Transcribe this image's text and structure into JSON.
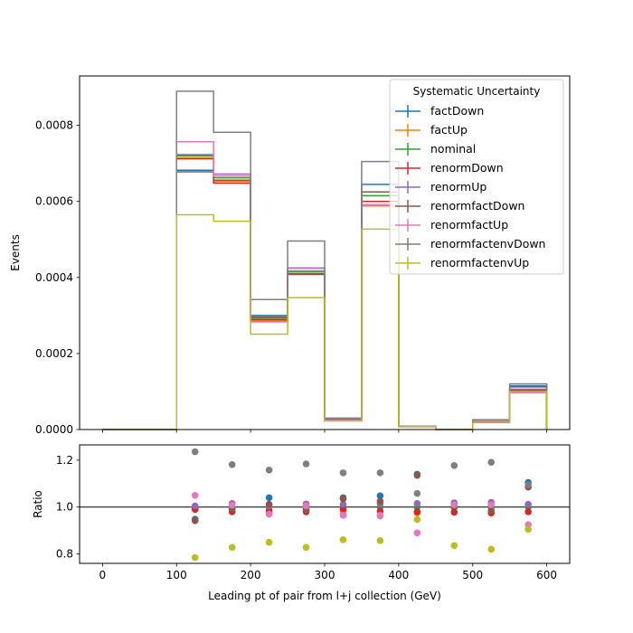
{
  "chart_data": [
    {
      "type": "line",
      "subtype": "step-histogram",
      "ylabel": "Events",
      "xlim": [
        -31,
        631
      ],
      "ylim": [
        0,
        0.00093
      ],
      "yticks": [
        0.0,
        0.0002,
        0.0004,
        0.0006,
        0.0008
      ],
      "ytick_labels": [
        "0.0000",
        "0.0002",
        "0.0004",
        "0.0006",
        "0.0008"
      ],
      "bin_edges": [
        0,
        50,
        100,
        150,
        200,
        250,
        300,
        350,
        400,
        450,
        500,
        550,
        600
      ],
      "legend": {
        "title": "Systematic Uncertainty",
        "placement": "top-right"
      },
      "series": [
        {
          "name": "factDown",
          "color": "#1f77b4",
          "values": [
            0,
            0,
            0.000682,
            0.000655,
            0.0003,
            0.000418,
            2.7e-05,
            0.000645,
            8.5e-06,
            0,
            2.2e-05,
            0.000115
          ]
        },
        {
          "name": "factUp",
          "color": "#ff7f0e",
          "values": [
            0,
            0,
            0.000715,
            0.000653,
            0.000286,
            0.00041,
            2.5e-05,
            0.000588,
            7.8e-06,
            0,
            2.1e-05,
            0.000105
          ]
        },
        {
          "name": "nominal",
          "color": "#2ca02c",
          "values": [
            0,
            0,
            0.00072,
            0.000662,
            0.000293,
            0.000415,
            2.6e-05,
            0.000615,
            8e-06,
            0,
            2.2e-05,
            0.000104
          ]
        },
        {
          "name": "renormDown",
          "color": "#d62728",
          "values": [
            0,
            0,
            0.000712,
            0.000648,
            0.000289,
            0.000408,
            2.6e-05,
            0.0006,
            7.9e-06,
            0,
            2.15e-05,
            0.000102
          ]
        },
        {
          "name": "renormUp",
          "color": "#9467bd",
          "values": [
            0,
            0,
            0.000723,
            0.000672,
            0.000295,
            0.000425,
            2.7e-05,
            0.000625,
            8.2e-06,
            0,
            2.23e-05,
            0.000106
          ]
        },
        {
          "name": "renormfactDown",
          "color": "#8c564b",
          "values": [
            0,
            0,
            0.000678,
            0.000656,
            0.000296,
            0.00041,
            2.7e-05,
            0.000625,
            8.4e-06,
            0,
            2.17e-05,
            0.000112
          ]
        },
        {
          "name": "renormfactUp",
          "color": "#e377c2",
          "values": [
            0,
            0,
            0.000757,
            0.000667,
            0.000283,
            0.000418,
            2.5e-05,
            0.000592,
            7.1e-06,
            0,
            2.24e-05,
            9.7e-05
          ]
        },
        {
          "name": "renormfactenvDown",
          "color": "#7f7f7f",
          "values": [
            0,
            0,
            0.00089,
            0.000782,
            0.000342,
            0.000496,
            3e-05,
            0.000705,
            8.5e-06,
            0,
            2.6e-05,
            0.00012
          ]
        },
        {
          "name": "renormfactenvUp",
          "color": "#bcbd22",
          "values": [
            0,
            0,
            0.000565,
            0.000548,
            0.000251,
            0.000347,
            2.25e-05,
            0.000527,
            7.6e-06,
            0,
            1.8e-05,
            0.0001
          ]
        }
      ]
    },
    {
      "type": "scatter",
      "xlabel": "Leading pt of pair from l+j collection (GeV)",
      "ylabel": "Ratio",
      "xlim": [
        -31,
        631
      ],
      "ylim": [
        0.76,
        1.265
      ],
      "xticks": [
        0,
        100,
        200,
        300,
        400,
        500,
        600
      ],
      "yticks": [
        0.8,
        1.0,
        1.2
      ],
      "ytick_labels": [
        "0.8",
        "1.0",
        "1.2"
      ],
      "reference_line": 1.0,
      "x": [
        125,
        175,
        225,
        275,
        325,
        375,
        425,
        475,
        525,
        575
      ],
      "series": [
        {
          "name": "factDown",
          "color": "#1f77b4",
          "values": [
            0.948,
            0.99,
            1.04,
            1.005,
            1.04,
            1.048,
            1.14,
            1.015,
            1.0,
            1.105
          ]
        },
        {
          "name": "factUp",
          "color": "#ff7f0e",
          "values": [
            0.993,
            0.987,
            0.976,
            0.988,
            0.97,
            0.962,
            0.975,
            0.995,
            0.975,
            1.01
          ]
        },
        {
          "name": "nominal",
          "color": "#2ca02c",
          "values": [
            1.0,
            1.0,
            1.0,
            1.0,
            1.0,
            1.0,
            1.0,
            1.0,
            1.0,
            1.0
          ]
        },
        {
          "name": "renormDown",
          "color": "#d62728",
          "values": [
            0.99,
            0.98,
            0.985,
            0.98,
            0.99,
            0.982,
            0.98,
            0.978,
            0.975,
            0.98
          ]
        },
        {
          "name": "renormUp",
          "color": "#9467bd",
          "values": [
            1.005,
            1.015,
            1.005,
            1.013,
            1.012,
            1.015,
            1.015,
            1.018,
            1.02,
            1.012
          ]
        },
        {
          "name": "renormfactDown",
          "color": "#8c564b",
          "values": [
            0.942,
            0.992,
            1.012,
            0.988,
            1.035,
            1.025,
            1.135,
            1.005,
            0.985,
            1.085
          ]
        },
        {
          "name": "renormfactUp",
          "color": "#e377c2",
          "values": [
            1.05,
            1.008,
            0.97,
            1.005,
            0.965,
            0.965,
            0.89,
            1.01,
            1.01,
            0.925
          ]
        },
        {
          "name": "renormfactenvDown",
          "color": "#7f7f7f",
          "values": [
            1.236,
            1.181,
            1.158,
            1.184,
            1.146,
            1.146,
            1.058,
            1.177,
            1.191,
            1.095
          ]
        },
        {
          "name": "renormfactenvUp",
          "color": "#bcbd22",
          "values": [
            0.785,
            0.828,
            0.85,
            0.828,
            0.861,
            0.857,
            0.947,
            0.836,
            0.82,
            0.905
          ]
        }
      ]
    }
  ]
}
